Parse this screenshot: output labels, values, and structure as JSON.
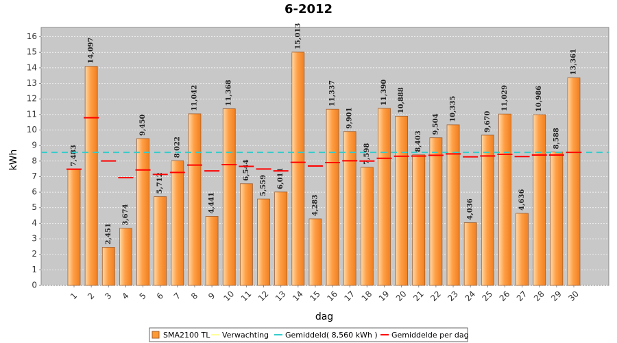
{
  "chart_data": {
    "type": "bar",
    "title": "6-2012",
    "x_label": "dag",
    "y_label": "kWh",
    "categories": [
      "1",
      "2",
      "3",
      "4",
      "5",
      "6",
      "7",
      "8",
      "9",
      "10",
      "11",
      "12",
      "13",
      "14",
      "15",
      "16",
      "17",
      "18",
      "19",
      "20",
      "21",
      "22",
      "23",
      "24",
      "25",
      "26",
      "27",
      "28",
      "29",
      "30"
    ],
    "series": [
      {
        "name": "SMA2100 TL",
        "color": "#ff9933",
        "values": [
          7.483,
          14.097,
          2.451,
          3.674,
          9.45,
          5.712,
          8.022,
          11.042,
          4.441,
          11.368,
          6.544,
          5.559,
          6.011,
          15.013,
          4.283,
          11.337,
          9.901,
          7.598,
          11.39,
          10.888,
          8.403,
          9.504,
          10.335,
          4.036,
          9.67,
          11.029,
          4.636,
          10.986,
          8.588,
          13.361
        ],
        "value_labels": [
          "7,483",
          "14,097",
          "2,451",
          "3,674",
          "9,450",
          "5,712",
          "8,022",
          "11,042",
          "4,441",
          "11,368",
          "6,544",
          "5,559",
          "6,011",
          "15,013",
          "4,283",
          "11,337",
          "9,901",
          "7,598",
          "11,390",
          "10,888",
          "8,403",
          "9,504",
          "10,335",
          "4,036",
          "9,670",
          "11,029",
          "4,636",
          "10,986",
          "8,588",
          "13,361"
        ]
      },
      {
        "name": "Verwachting",
        "color": "#ffff99",
        "values": [
          null,
          null,
          null,
          null,
          null,
          null,
          null,
          null,
          null,
          null,
          null,
          null,
          null,
          null,
          null,
          null,
          null,
          null,
          null,
          null,
          null,
          null,
          null,
          null,
          null,
          null,
          null,
          null,
          null,
          null
        ]
      },
      {
        "name": "Gemiddelde per dag",
        "color": "#ff0000",
        "values": [
          7.48,
          10.79,
          8.01,
          6.93,
          7.43,
          7.14,
          7.27,
          7.74,
          7.37,
          7.77,
          7.66,
          7.49,
          7.37,
          7.92,
          7.68,
          7.9,
          8.02,
          8.0,
          8.18,
          8.31,
          8.32,
          8.37,
          8.46,
          8.27,
          8.33,
          8.43,
          8.29,
          8.39,
          8.39,
          8.56
        ]
      }
    ],
    "average": {
      "name": "Gemiddeld( 8,560 kWh )",
      "value": 8.56,
      "color": "#33cccc"
    },
    "ylim": [
      0,
      16.6
    ],
    "yticks": [
      0,
      1,
      2,
      3,
      4,
      5,
      6,
      7,
      8,
      9,
      10,
      11,
      12,
      13,
      14,
      15,
      16
    ],
    "grid": true
  }
}
